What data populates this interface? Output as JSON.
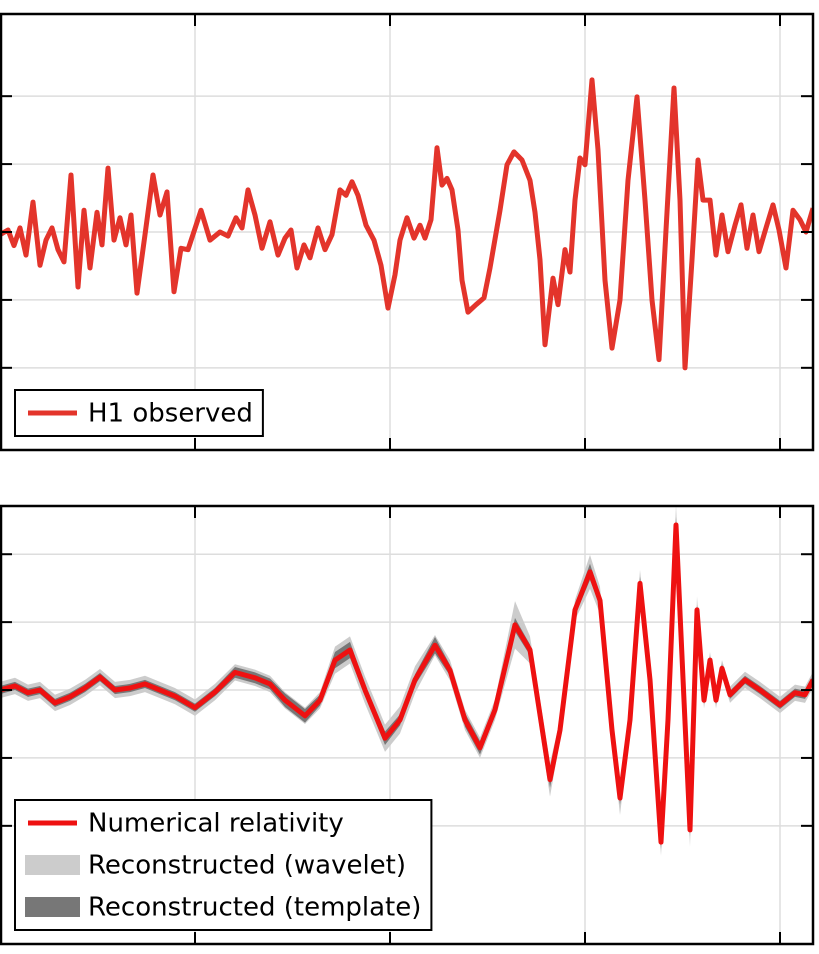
{
  "chart_data": [
    {
      "type": "line",
      "x": [
        0,
        8,
        14,
        20,
        26,
        33,
        40,
        46,
        52,
        58,
        64,
        71,
        78,
        84,
        90,
        97,
        102,
        108,
        114,
        120,
        126,
        131,
        137,
        145,
        153,
        160,
        167,
        174,
        181,
        188,
        201,
        210,
        220,
        228,
        236,
        242,
        248,
        255,
        262,
        270,
        278,
        285,
        291,
        297,
        304,
        310,
        318,
        325,
        332,
        340,
        346,
        352,
        358,
        366,
        374,
        381,
        388,
        395,
        400,
        407,
        414,
        420,
        425,
        431,
        437,
        442,
        447,
        452,
        458,
        462,
        468,
        476,
        484,
        490,
        500,
        507,
        514,
        522,
        530,
        535,
        540,
        545,
        553,
        558,
        565,
        570,
        575,
        580,
        585,
        592,
        598,
        605,
        612,
        620,
        628,
        637,
        645,
        652,
        659,
        666,
        674,
        680,
        685,
        692,
        698,
        703,
        710,
        716,
        722,
        728,
        735,
        741,
        747,
        753,
        759,
        766,
        773,
        779,
        786,
        793,
        800,
        806,
        813
      ],
      "series": [
        {
          "name": "H1 observed",
          "color": "#e3342b",
          "values": [
            -0.04,
            0.03,
            -0.2,
            0.06,
            -0.34,
            0.44,
            -0.49,
            -0.12,
            0.06,
            -0.26,
            -0.44,
            0.84,
            -0.81,
            0.32,
            -0.53,
            0.29,
            -0.19,
            0.94,
            -0.12,
            0.21,
            -0.19,
            0.25,
            -0.9,
            -0.04,
            0.84,
            0.25,
            0.59,
            -0.88,
            -0.24,
            -0.26,
            0.32,
            -0.12,
            0,
            -0.06,
            0.21,
            0.06,
            0.62,
            0.25,
            -0.24,
            0.15,
            -0.34,
            -0.09,
            0.03,
            -0.53,
            -0.19,
            -0.38,
            0.06,
            -0.26,
            -0.04,
            0.62,
            0.54,
            0.74,
            0.54,
            0.1,
            -0.12,
            -0.49,
            -1.12,
            -0.63,
            -0.12,
            0.21,
            -0.09,
            0.1,
            -0.09,
            0.18,
            1.24,
            0.69,
            0.79,
            0.62,
            0.03,
            -0.71,
            -1.18,
            -1.07,
            -0.97,
            -0.53,
            0.32,
            0.99,
            1.18,
            1.06,
            0.76,
            0.29,
            -0.41,
            -1.66,
            -0.68,
            -1.07,
            -0.26,
            -0.59,
            0.47,
            1.09,
            0.99,
            2.24,
            1.21,
            -0.71,
            -1.71,
            -1.0,
            0.76,
            1.99,
            0.47,
            -1.0,
            -1.88,
            0.03,
            2.12,
            0.47,
            -2.0,
            -0.41,
            1.06,
            0.47,
            0.47,
            -0.34,
            0.25,
            -0.29,
            0.1,
            0.4,
            -0.24,
            0.25,
            -0.29,
            0.06,
            0.4,
            0.03,
            -0.53,
            0.32,
            0.18,
            0,
            0.35
          ]
        }
      ],
      "xlim": [
        0,
        813
      ],
      "xticks": [
        195,
        390,
        585,
        780
      ],
      "ylim": [
        -3.21,
        3.21
      ],
      "yticks": [
        -2,
        -1,
        0,
        1,
        2
      ],
      "grid": true,
      "legend": "lower left"
    },
    {
      "type": "line",
      "x": [
        0,
        15,
        28,
        40,
        55,
        70,
        85,
        100,
        115,
        130,
        145,
        160,
        175,
        195,
        215,
        235,
        255,
        270,
        285,
        305,
        320,
        335,
        350,
        365,
        385,
        400,
        415,
        435,
        450,
        465,
        480,
        495,
        515,
        530,
        550,
        560,
        575,
        590,
        600,
        612,
        620,
        630,
        640,
        650,
        661,
        668,
        676,
        684,
        690,
        697,
        704,
        710,
        716,
        722,
        730,
        745,
        760,
        780,
        795,
        805,
        813
      ],
      "series": [
        {
          "name": "Reconstructed (wavelet)",
          "type": "band",
          "color": "#cccccc",
          "values": [
            0,
            0.06,
            -0.04,
            0,
            -0.19,
            -0.1,
            0.03,
            0.19,
            0,
            0.03,
            0.09,
            0,
            -0.09,
            -0.26,
            -0.03,
            0.26,
            0.18,
            0.09,
            -0.15,
            -0.38,
            -0.15,
            0.44,
            0.59,
            0,
            -0.71,
            -0.44,
            0.15,
            0.66,
            0.29,
            -0.44,
            -0.85,
            -0.29,
            0.96,
            0.59,
            -1.32,
            -0.59,
            1.18,
            1.74,
            1.32,
            -0.59,
            -1.59,
            -0.44,
            1.57,
            0.15,
            -2.24,
            -0.44,
            2.43,
            -0.15,
            -2.06,
            1.18,
            -0.15,
            0.44,
            -0.15,
            0.32,
            -0.07,
            0.15,
            0,
            -0.22,
            -0.04,
            -0.07,
            0.15
          ],
          "errors": [
            0.12,
            0.12,
            0.12,
            0.12,
            0.12,
            0.12,
            0.12,
            0.12,
            0.12,
            0.12,
            0.12,
            0.12,
            0.12,
            0.12,
            0.12,
            0.12,
            0.12,
            0.12,
            0.12,
            0.12,
            0.12,
            0.2,
            0.2,
            0.2,
            0.2,
            0.2,
            0.2,
            0.15,
            0.15,
            0.15,
            0.15,
            0.15,
            0.35,
            0.2,
            0.25,
            0.15,
            0.15,
            0.25,
            0.2,
            0.15,
            0.25,
            0.15,
            0.2,
            0.15,
            0.2,
            0.15,
            0.3,
            0.2,
            0.25,
            0.2,
            0.12,
            0.12,
            0.12,
            0.12,
            0.12,
            0.12,
            0.12,
            0.12,
            0.12,
            0.12,
            0.12
          ]
        },
        {
          "name": "Reconstructed (template)",
          "type": "band",
          "color": "#777777",
          "values": [
            0,
            0.06,
            -0.04,
            0,
            -0.19,
            -0.1,
            0.03,
            0.19,
            0,
            0.03,
            0.09,
            0,
            -0.09,
            -0.26,
            -0.03,
            0.26,
            0.18,
            0.09,
            -0.15,
            -0.38,
            -0.15,
            0.44,
            0.59,
            0,
            -0.71,
            -0.44,
            0.15,
            0.66,
            0.29,
            -0.44,
            -0.85,
            -0.29,
            0.96,
            0.59,
            -1.32,
            -0.59,
            1.18,
            1.74,
            1.32,
            -0.59,
            -1.59,
            -0.44,
            1.57,
            0.15,
            -2.24,
            -0.44,
            2.43,
            -0.15,
            -2.06,
            1.18,
            -0.15,
            0.44,
            -0.15,
            0.32,
            -0.07,
            0.15,
            0,
            -0.22,
            -0.04,
            -0.07,
            0.15
          ],
          "errors": [
            0.06,
            0.06,
            0.06,
            0.06,
            0.06,
            0.06,
            0.06,
            0.06,
            0.06,
            0.06,
            0.06,
            0.06,
            0.06,
            0.06,
            0.06,
            0.08,
            0.08,
            0.08,
            0.1,
            0.1,
            0.08,
            0.12,
            0.12,
            0.08,
            0.1,
            0.08,
            0.08,
            0.12,
            0.08,
            0.1,
            0.1,
            0.08,
            0.1,
            0.08,
            0.12,
            0.08,
            0.08,
            0.12,
            0.08,
            0.08,
            0.1,
            0.08,
            0.1,
            0.08,
            0.1,
            0.08,
            0.12,
            0.08,
            0.1,
            0.08,
            0.06,
            0.06,
            0.06,
            0.06,
            0.06,
            0.06,
            0.06,
            0.06,
            0.06,
            0.06,
            0.06
          ]
        },
        {
          "name": "Numerical relativity",
          "type": "line",
          "color": "#ee1111",
          "values": [
            0,
            0.06,
            -0.04,
            0,
            -0.19,
            -0.1,
            0.03,
            0.19,
            0,
            0.03,
            0.09,
            0,
            -0.09,
            -0.26,
            -0.03,
            0.26,
            0.18,
            0.09,
            -0.15,
            -0.38,
            -0.15,
            0.44,
            0.59,
            0,
            -0.71,
            -0.44,
            0.15,
            0.66,
            0.29,
            -0.44,
            -0.85,
            -0.29,
            0.96,
            0.59,
            -1.32,
            -0.59,
            1.18,
            1.74,
            1.32,
            -0.59,
            -1.59,
            -0.44,
            1.57,
            0.15,
            -2.24,
            -0.44,
            2.43,
            -0.15,
            -2.06,
            1.18,
            -0.15,
            0.44,
            -0.15,
            0.32,
            -0.07,
            0.15,
            0,
            -0.22,
            -0.04,
            -0.07,
            0.15
          ]
        }
      ],
      "xlim": [
        0,
        813
      ],
      "xticks": [
        195,
        390,
        585,
        780
      ],
      "ylim": [
        -3.74,
        2.71
      ],
      "yticks": [
        -2,
        -1,
        0,
        1,
        2
      ],
      "grid": true,
      "legend": "lower left"
    }
  ]
}
